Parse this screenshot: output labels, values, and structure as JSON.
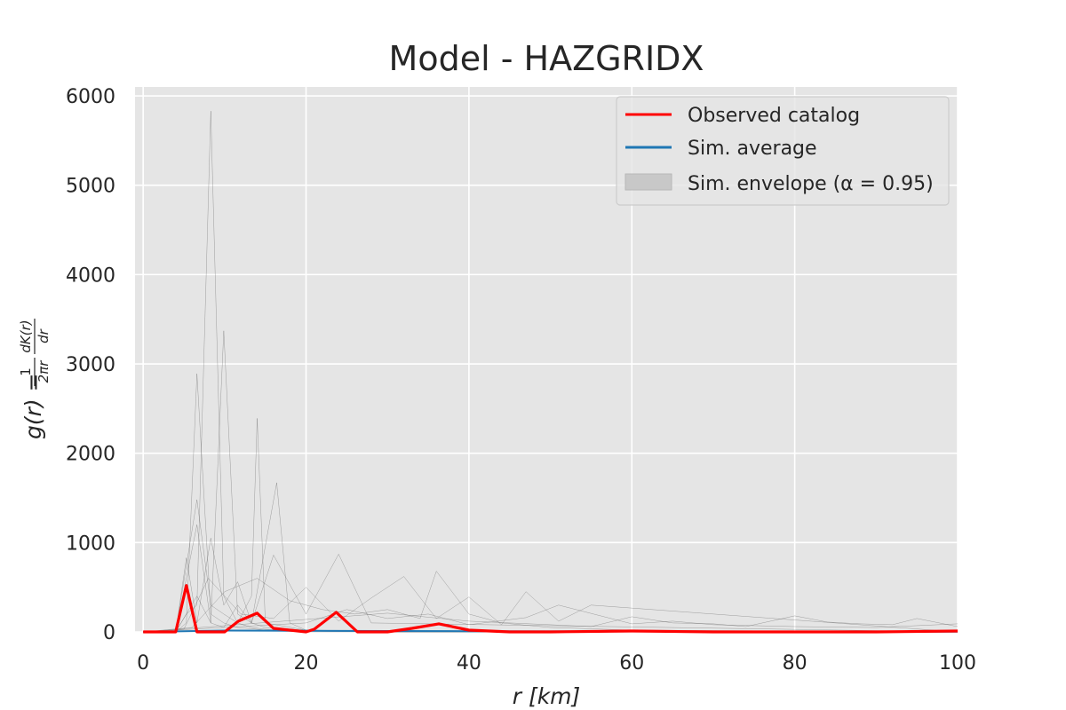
{
  "chart_data": {
    "type": "line",
    "title": "Model - HAZGRIDX",
    "xlabel": "r  [km]",
    "ylabel": "g(r) = (1/2πr) dK(r)/dr",
    "ylabel_parts": {
      "lhs": "g(r) =",
      "frac1_num": "1",
      "frac1_den": "2πr",
      "frac2_num": "dK(r)",
      "frac2_den": "dr"
    },
    "xlim": [
      -1,
      100
    ],
    "ylim": [
      0,
      6100
    ],
    "xticks": [
      0,
      20,
      40,
      60,
      80,
      100
    ],
    "yticks": [
      0,
      1000,
      2000,
      3000,
      4000,
      5000,
      6000
    ],
    "grid": true,
    "legend_position": "top-right",
    "legend": [
      {
        "label": "Observed catalog",
        "kind": "line",
        "color": "#ff0000"
      },
      {
        "label": "Sim. average",
        "kind": "line",
        "color": "#1f77b4"
      },
      {
        "label": "Sim. envelope (α = 0.95)",
        "kind": "patch",
        "color": "#bfbfbf"
      }
    ],
    "observed": {
      "name": "Observed catalog",
      "color": "#ff0000",
      "x": [
        0,
        4,
        5.3,
        6.6,
        10,
        11.7,
        14,
        16,
        20,
        21,
        23.7,
        26.3,
        30,
        33,
        36.3,
        40,
        45,
        50,
        60,
        70,
        80,
        90,
        100
      ],
      "y": [
        0,
        0,
        520,
        0,
        0,
        120,
        210,
        40,
        0,
        30,
        220,
        0,
        0,
        40,
        90,
        20,
        0,
        0,
        10,
        0,
        0,
        0,
        10
      ]
    },
    "sim_average": {
      "name": "Sim. average",
      "color": "#1f77b4",
      "x": [
        0,
        10,
        20,
        30,
        40,
        50,
        60,
        70,
        80,
        90,
        100
      ],
      "y": [
        0,
        15,
        12,
        10,
        8,
        6,
        5,
        4,
        3,
        3,
        3
      ]
    },
    "simulations": [
      {
        "x": [
          0,
          4,
          5.3,
          6.6,
          8.3,
          9.9,
          11.6,
          13.3,
          15,
          16.6,
          20,
          23.3,
          30,
          40,
          50,
          60,
          100
        ],
        "y": [
          0,
          0,
          200,
          300,
          5830,
          400,
          100,
          50,
          30,
          20,
          10,
          5,
          0,
          0,
          0,
          0,
          0
        ]
      },
      {
        "x": [
          0,
          4,
          6.6,
          8.3,
          9.9,
          11.6,
          13.3,
          15,
          20,
          30,
          40,
          60,
          100
        ],
        "y": [
          0,
          0,
          400,
          100,
          3370,
          200,
          100,
          50,
          20,
          10,
          5,
          0,
          0
        ]
      },
      {
        "x": [
          0,
          4,
          5.3,
          6.6,
          8.3,
          9.9,
          11.6,
          14,
          16,
          20,
          30,
          40,
          100
        ],
        "y": [
          0,
          0,
          100,
          2890,
          200,
          100,
          50,
          30,
          10,
          0,
          0,
          0,
          0
        ]
      },
      {
        "x": [
          0,
          4,
          6.6,
          8.3,
          9.9,
          11.6,
          13.3,
          14,
          15,
          20,
          30,
          100
        ],
        "y": [
          0,
          0,
          1480,
          300,
          200,
          100,
          400,
          2390,
          100,
          20,
          0,
          0
        ]
      },
      {
        "x": [
          0,
          4,
          6.6,
          8.3,
          9.9,
          11.6,
          13.3,
          16.4,
          18,
          20,
          30,
          100
        ],
        "y": [
          0,
          0,
          1200,
          100,
          50,
          300,
          100,
          1670,
          100,
          20,
          0,
          0
        ]
      },
      {
        "x": [
          0,
          4,
          5.3,
          6.6,
          8.3,
          9.9,
          11.6,
          13.3,
          16,
          20,
          24,
          28,
          100
        ],
        "y": [
          0,
          0,
          830,
          100,
          1050,
          300,
          560,
          100,
          860,
          200,
          870,
          100,
          0
        ]
      },
      {
        "x": [
          0,
          5,
          8,
          12,
          16,
          20,
          24,
          28,
          32,
          36,
          40,
          44,
          47,
          51,
          55,
          100
        ],
        "y": [
          0,
          30,
          600,
          200,
          150,
          500,
          120,
          380,
          620,
          150,
          390,
          80,
          450,
          120,
          300,
          0
        ]
      },
      {
        "x": [
          0,
          6,
          10,
          14,
          18,
          22,
          26,
          30,
          34,
          36,
          40,
          44,
          50,
          60,
          100
        ],
        "y": [
          0,
          50,
          450,
          600,
          350,
          250,
          200,
          250,
          150,
          680,
          200,
          100,
          50,
          20,
          0
        ]
      },
      {
        "x": [
          0,
          30,
          40,
          50,
          55,
          60,
          65,
          70,
          74,
          80,
          84,
          88,
          92,
          95,
          100
        ],
        "y": [
          0,
          210,
          120,
          80,
          60,
          170,
          100,
          90,
          60,
          180,
          110,
          90,
          80,
          150,
          60
        ]
      },
      {
        "x": [
          0,
          20,
          25,
          30,
          35,
          40,
          47,
          51,
          60,
          65,
          70,
          80,
          90,
          100
        ],
        "y": [
          0,
          100,
          250,
          150,
          200,
          80,
          160,
          300,
          90,
          120,
          80,
          60,
          50,
          90
        ]
      }
    ]
  }
}
